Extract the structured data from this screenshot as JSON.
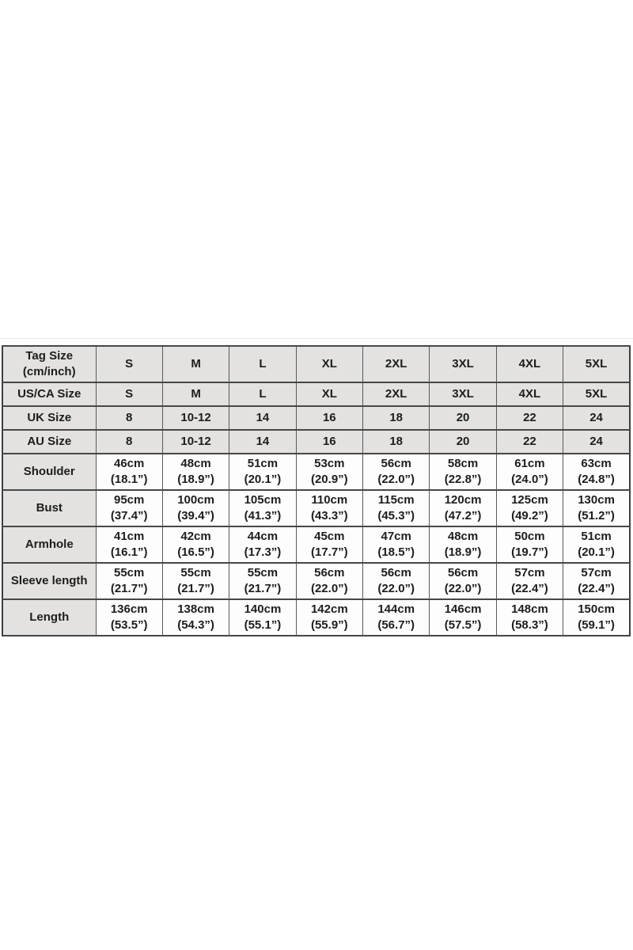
{
  "chart_data": {
    "type": "table",
    "title": "Garment size chart",
    "columns": [
      "S",
      "M",
      "L",
      "XL",
      "2XL",
      "3XL",
      "4XL",
      "5XL"
    ],
    "rows": [
      {
        "kind": "size-header",
        "label_lines": [
          "Tag Size",
          "(cm/inch)"
        ],
        "cells": [
          [
            "S"
          ],
          [
            "M"
          ],
          [
            "L"
          ],
          [
            "XL"
          ],
          [
            "2XL"
          ],
          [
            "3XL"
          ],
          [
            "4XL"
          ],
          [
            "5XL"
          ]
        ]
      },
      {
        "kind": "size-header",
        "label_lines": [
          "US/CA Size"
        ],
        "cells": [
          [
            "S"
          ],
          [
            "M"
          ],
          [
            "L"
          ],
          [
            "XL"
          ],
          [
            "2XL"
          ],
          [
            "3XL"
          ],
          [
            "4XL"
          ],
          [
            "5XL"
          ]
        ]
      },
      {
        "kind": "size-header",
        "label_lines": [
          "UK Size"
        ],
        "cells": [
          [
            "8"
          ],
          [
            "10-12"
          ],
          [
            "14"
          ],
          [
            "16"
          ],
          [
            "18"
          ],
          [
            "20"
          ],
          [
            "22"
          ],
          [
            "24"
          ]
        ]
      },
      {
        "kind": "size-header",
        "label_lines": [
          "AU Size"
        ],
        "cells": [
          [
            "8"
          ],
          [
            "10-12"
          ],
          [
            "14"
          ],
          [
            "16"
          ],
          [
            "18"
          ],
          [
            "20"
          ],
          [
            "22"
          ],
          [
            "24"
          ]
        ]
      },
      {
        "kind": "measurement",
        "label_lines": [
          "Shoulder"
        ],
        "cells": [
          [
            "46cm",
            "(18.1”)"
          ],
          [
            "48cm",
            "(18.9”)"
          ],
          [
            "51cm",
            "(20.1”)"
          ],
          [
            "53cm",
            "(20.9”)"
          ],
          [
            "56cm",
            "(22.0”)"
          ],
          [
            "58cm",
            "(22.8”)"
          ],
          [
            "61cm",
            "(24.0”)"
          ],
          [
            "63cm",
            "(24.8”)"
          ]
        ]
      },
      {
        "kind": "measurement",
        "label_lines": [
          "Bust"
        ],
        "cells": [
          [
            "95cm",
            "(37.4”)"
          ],
          [
            "100cm",
            "(39.4”)"
          ],
          [
            "105cm",
            "(41.3”)"
          ],
          [
            "110cm",
            "(43.3”)"
          ],
          [
            "115cm",
            "(45.3”)"
          ],
          [
            "120cm",
            "(47.2”)"
          ],
          [
            "125cm",
            "(49.2”)"
          ],
          [
            "130cm",
            "(51.2”)"
          ]
        ]
      },
      {
        "kind": "measurement",
        "label_lines": [
          "Armhole"
        ],
        "cells": [
          [
            "41cm",
            "(16.1”)"
          ],
          [
            "42cm",
            "(16.5”)"
          ],
          [
            "44cm",
            "(17.3”)"
          ],
          [
            "45cm",
            "(17.7”)"
          ],
          [
            "47cm",
            "(18.5”)"
          ],
          [
            "48cm",
            "(18.9”)"
          ],
          [
            "50cm",
            "(19.7”)"
          ],
          [
            "51cm",
            "(20.1”)"
          ]
        ]
      },
      {
        "kind": "measurement",
        "label_lines": [
          "Sleeve length"
        ],
        "cells": [
          [
            "55cm",
            "(21.7”)"
          ],
          [
            "55cm",
            "(21.7”)"
          ],
          [
            "55cm",
            "(21.7”)"
          ],
          [
            "56cm",
            "(22.0”)"
          ],
          [
            "56cm",
            "(22.0”)"
          ],
          [
            "56cm",
            "(22.0”)"
          ],
          [
            "57cm",
            "(22.4”)"
          ],
          [
            "57cm",
            "(22.4”)"
          ]
        ]
      },
      {
        "kind": "measurement",
        "label_lines": [
          "Length"
        ],
        "cells": [
          [
            "136cm",
            "(53.5”)"
          ],
          [
            "138cm",
            "(54.3”)"
          ],
          [
            "140cm",
            "(55.1”)"
          ],
          [
            "142cm",
            "(55.9”)"
          ],
          [
            "144cm",
            "(56.7”)"
          ],
          [
            "146cm",
            "(57.5”)"
          ],
          [
            "148cm",
            "(58.3”)"
          ],
          [
            "150cm",
            "(59.1”)"
          ]
        ]
      }
    ]
  },
  "colors": {
    "header_bg": "#e3e2e0",
    "cell_bg": "#fdfdfd",
    "border": "#4a4a4a",
    "text": "#1d1d1d",
    "page_bg": "#ffffff"
  }
}
